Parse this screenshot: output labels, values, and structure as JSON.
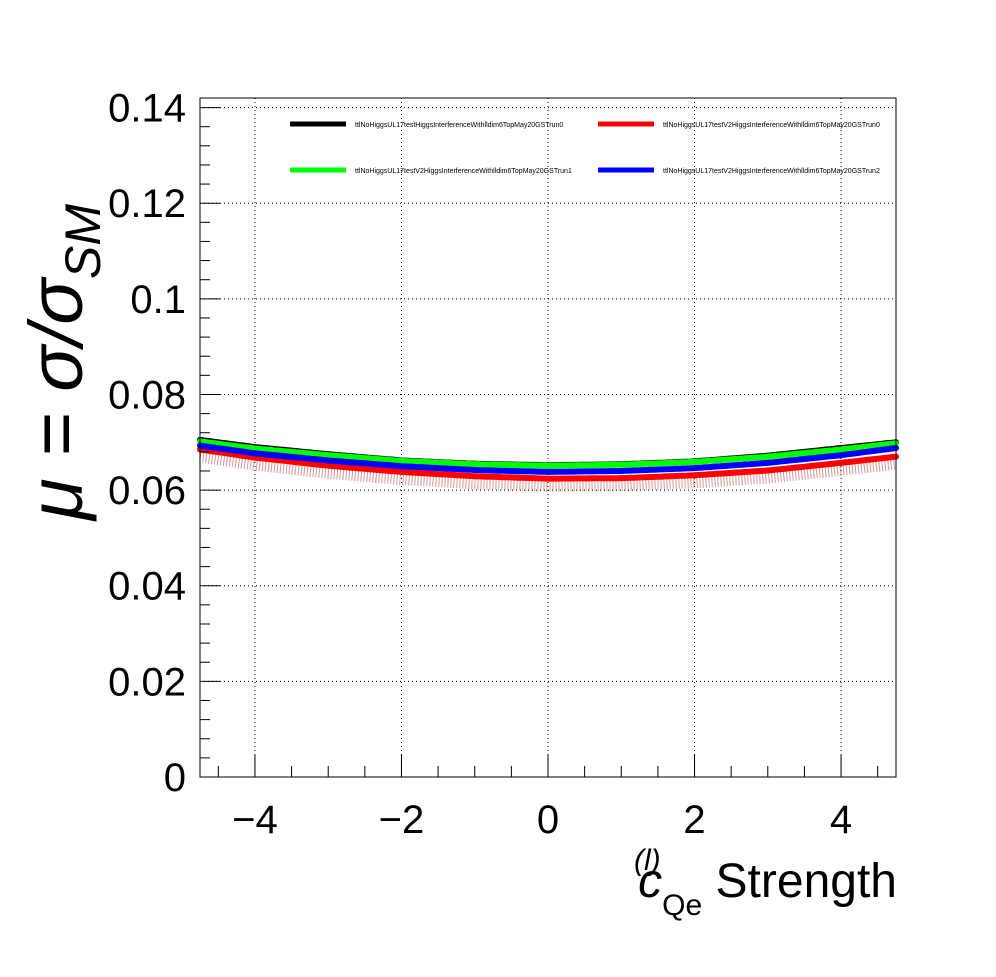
{
  "chart_data": {
    "type": "line",
    "ylabel": "μ = σ/σ",
    "ylabel_sub": "SM",
    "xlabel_main": "c",
    "xlabel_sup": "(l)",
    "xlabel_sub": "Qe",
    "xlabel_rest": " Strength",
    "xlim": [
      -4.75,
      4.75
    ],
    "ylim": [
      0,
      0.142
    ],
    "x_ticks": [
      -4,
      -2,
      0,
      2,
      4
    ],
    "x_tick_labels": [
      "−4",
      "−2",
      "0",
      "2",
      "4"
    ],
    "y_ticks": [
      0,
      0.02,
      0.04,
      0.06,
      0.08,
      0.1,
      0.12,
      0.14
    ],
    "y_tick_labels": [
      "0",
      "0.02",
      "0.04",
      "0.06",
      "0.08",
      "0.1",
      "0.12",
      "0.14"
    ],
    "grid": true,
    "legend_position": "top",
    "series": [
      {
        "name": "ttlNoHiggsUL17testHiggsInterferenceWithlldim6TopMay20GSTrun0",
        "color": "#000000",
        "x": [
          -4.75,
          -4,
          -3,
          -2,
          -1,
          0,
          1,
          2,
          3,
          4,
          4.75
        ],
        "y": [
          0.0705,
          0.069,
          0.0675,
          0.0662,
          0.0655,
          0.0652,
          0.0654,
          0.066,
          0.0672,
          0.0688,
          0.07
        ]
      },
      {
        "name": "ttlNoHiggsUL17testV2HiggsInterferenceWithlldim6TopMay20GSTrun0",
        "color": "#ff0000",
        "x": [
          -4.75,
          -4,
          -3,
          -2,
          -1,
          0,
          1,
          2,
          3,
          4,
          4.75
        ],
        "y": [
          0.0685,
          0.0668,
          0.0651,
          0.0638,
          0.0629,
          0.0624,
          0.0625,
          0.0631,
          0.0641,
          0.0657,
          0.067
        ]
      },
      {
        "name": "ttlNoHiggsUL17testV2HiggsInterferenceWithlldim6TopMay20GSTrun1",
        "color": "#00ff00",
        "x": [
          -4.75,
          -4,
          -3,
          -2,
          -1,
          0,
          1,
          2,
          3,
          4,
          4.75
        ],
        "y": [
          0.0702,
          0.0687,
          0.0673,
          0.0661,
          0.0654,
          0.0651,
          0.0653,
          0.0659,
          0.067,
          0.0685,
          0.0698
        ]
      },
      {
        "name": "ttlNoHiggsUL17testV2HiggsInterferenceWithlldim6TopMay20GSTrun2",
        "color": "#0000ff",
        "x": [
          -4.75,
          -4,
          -3,
          -2,
          -1,
          0,
          1,
          2,
          3,
          4,
          4.75
        ],
        "y": [
          0.0693,
          0.0677,
          0.0662,
          0.065,
          0.0642,
          0.0638,
          0.064,
          0.0646,
          0.0657,
          0.0673,
          0.0688
        ]
      }
    ]
  }
}
